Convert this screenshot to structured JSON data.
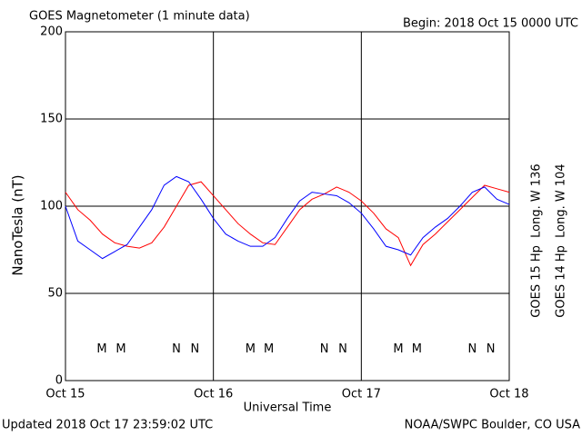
{
  "chart_data": {
    "type": "line",
    "title": "GOES Magnetometer (1 minute data)",
    "subtitle": "Begin:  2018 Oct 15 0000 UTC",
    "x_label": "Universal Time",
    "y_label": "NanoTesla (nT)",
    "footer_left": "Updated 2018 Oct 17 23:59:02 UTC",
    "footer_right": "NOAA/SWPC Boulder, CO USA",
    "x": [
      0,
      2,
      4,
      6,
      8,
      10,
      12,
      14,
      16,
      18,
      20,
      22,
      24,
      26,
      28,
      30,
      32,
      34,
      36,
      38,
      40,
      42,
      44,
      46,
      48,
      50,
      52,
      54,
      56,
      58,
      60,
      62,
      64,
      66,
      68,
      70,
      72
    ],
    "xlim": [
      0,
      72
    ],
    "xticks": [
      {
        "value": 0,
        "label": "Oct 15"
      },
      {
        "value": 24,
        "label": "Oct 16"
      },
      {
        "value": 48,
        "label": "Oct 17"
      },
      {
        "value": 72,
        "label": "Oct 18"
      }
    ],
    "ylim": [
      0,
      200
    ],
    "yticks": [
      0,
      50,
      100,
      150,
      200
    ],
    "grid": true,
    "series": [
      {
        "name": "GOES 15 Hp  Long. W 136",
        "color": "#ff0000",
        "values": [
          108,
          98,
          92,
          84,
          79,
          77,
          76,
          79,
          88,
          100,
          112,
          114,
          106,
          98,
          90,
          84,
          79,
          78,
          88,
          98,
          104,
          107,
          111,
          108,
          103,
          96,
          87,
          82,
          66,
          78,
          84,
          91,
          98,
          105,
          112,
          110,
          108
        ]
      },
      {
        "name": "GOES 14 Hp  Long. W 104",
        "color": "#0000ff",
        "values": [
          100,
          80,
          75,
          70,
          74,
          78,
          88,
          98,
          112,
          117,
          114,
          104,
          93,
          84,
          80,
          77,
          77,
          82,
          93,
          103,
          108,
          107,
          106,
          102,
          96,
          87,
          77,
          75,
          72,
          82,
          88,
          93,
          100,
          108,
          111,
          104,
          101
        ]
      }
    ],
    "annotations": [
      {
        "text": "M",
        "x": 5.9,
        "y": 18,
        "color": "#0000ff"
      },
      {
        "text": "M",
        "x": 9,
        "y": 18,
        "color": "#ff0000"
      },
      {
        "text": "N",
        "x": 18,
        "y": 18,
        "color": "#0000ff"
      },
      {
        "text": "N",
        "x": 21,
        "y": 18,
        "color": "#ff0000"
      },
      {
        "text": "M",
        "x": 30,
        "y": 18,
        "color": "#0000ff"
      },
      {
        "text": "M",
        "x": 33,
        "y": 18,
        "color": "#ff0000"
      },
      {
        "text": "N",
        "x": 42,
        "y": 18,
        "color": "#0000ff"
      },
      {
        "text": "N",
        "x": 45,
        "y": 18,
        "color": "#ff0000"
      },
      {
        "text": "M",
        "x": 54,
        "y": 18,
        "color": "#0000ff"
      },
      {
        "text": "M",
        "x": 57,
        "y": 18,
        "color": "#ff0000"
      },
      {
        "text": "N",
        "x": 66,
        "y": 18,
        "color": "#0000ff"
      },
      {
        "text": "N",
        "x": 69,
        "y": 18,
        "color": "#ff0000"
      }
    ]
  }
}
